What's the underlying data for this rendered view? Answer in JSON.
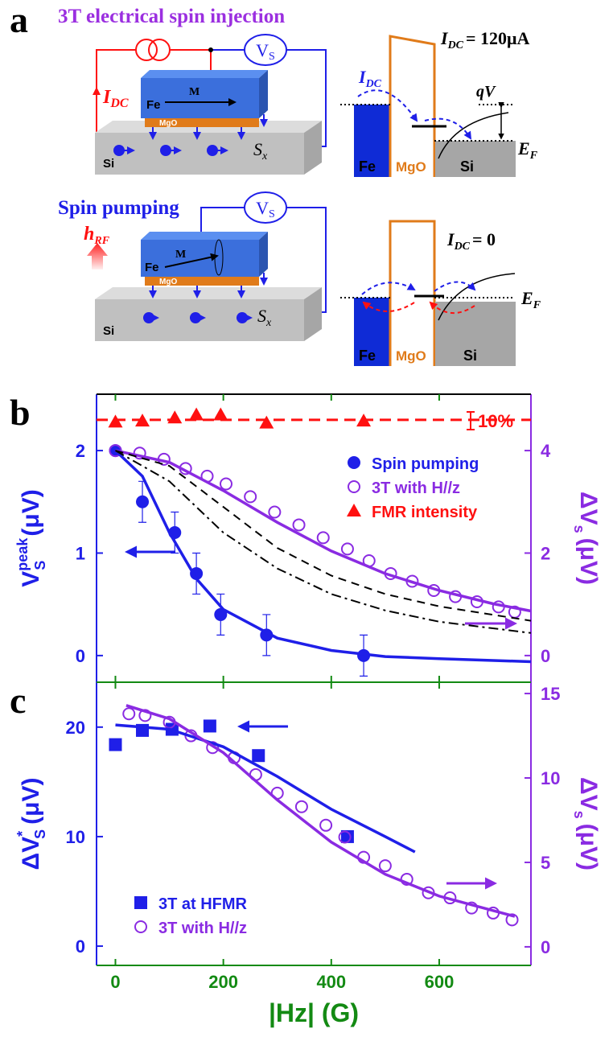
{
  "panel_a": {
    "label": "a",
    "title_top": "3T electrical spin injection",
    "title_bottom": "Spin pumping",
    "top": {
      "current": {
        "symbol": "I",
        "sub": "DC"
      },
      "voltmeter": {
        "symbol": "V",
        "sub": "S"
      },
      "fe": "Fe",
      "m": "M",
      "mgo": "MgO",
      "si": "Si",
      "spin": {
        "symbol": "S",
        "sub": "x"
      }
    },
    "top_band": {
      "current_label": {
        "symbol": "I",
        "sub": "DC",
        "value": "= 120μA"
      },
      "current_arrow": {
        "symbol": "I",
        "sub": "DC"
      },
      "qv": "qV",
      "ef": {
        "symbol": "E",
        "sub": "F"
      },
      "fe": "Fe",
      "mgo": "MgO",
      "si": "Si"
    },
    "bottom": {
      "field": {
        "symbol": "h",
        "sub": "RF"
      },
      "voltmeter": {
        "symbol": "V",
        "sub": "S"
      },
      "fe": "Fe",
      "m": "M",
      "mgo": "MgO",
      "si": "Si",
      "spin": {
        "symbol": "S",
        "sub": "x"
      }
    },
    "bottom_band": {
      "current_label": {
        "symbol": "I",
        "sub": "DC",
        "value": "= 0"
      },
      "ef": {
        "symbol": "E",
        "sub": "F"
      },
      "fe": "Fe",
      "mgo": "MgO",
      "si": "Si"
    }
  },
  "chart_data": [
    {
      "type": "scatter",
      "panel_label": "b",
      "xlim": [
        -35,
        770
      ],
      "ylim": [
        -0.26,
        2.55
      ],
      "yticks": [
        0,
        1,
        2
      ],
      "y2lim": [
        -0.52,
        5.1
      ],
      "y2ticks": [
        0,
        2,
        4
      ],
      "y_label": {
        "symbol": "V",
        "sub": "S",
        "sup": "peak",
        "unit": "(μV)"
      },
      "y2_label": {
        "symbol": "ΔV",
        "sub": "s",
        "unit": "(μV)"
      },
      "legend": "upper right",
      "annotation": "10%",
      "left_color": "#1f1fe8",
      "right_color": "#8a2be2",
      "series": [
        {
          "name": "Spin pumping",
          "color": "#1f1fe8",
          "marker": "circle",
          "x": [
            0,
            50,
            110,
            150,
            195,
            280,
            460
          ],
          "values": [
            2.0,
            1.5,
            1.2,
            0.8,
            0.4,
            0.2,
            0.0
          ],
          "errors": [
            0.0,
            0.2,
            0.2,
            0.2,
            0.2,
            0.2,
            0.2
          ]
        },
        {
          "name": "3T with H//z",
          "color": "#8a2be2",
          "marker": "open-circle",
          "axis": "y2",
          "x": [
            0,
            45,
            90,
            130,
            170,
            205,
            250,
            295,
            340,
            385,
            430,
            470,
            510,
            550,
            590,
            630,
            670,
            710,
            740
          ],
          "values": [
            4.0,
            3.95,
            3.83,
            3.65,
            3.5,
            3.35,
            3.1,
            2.8,
            2.55,
            2.3,
            2.08,
            1.85,
            1.6,
            1.45,
            1.27,
            1.15,
            1.05,
            0.95,
            0.85
          ]
        },
        {
          "name": "FMR intensity",
          "color": "#ff1010",
          "marker": "triangle",
          "x": [
            0,
            50,
            110,
            150,
            195,
            280,
            460
          ],
          "values": [
            2.28,
            2.29,
            2.32,
            2.35,
            2.35,
            2.27,
            2.29
          ]
        },
        {
          "color": "#1f1fe8",
          "marker": "line",
          "x": [
            0,
            50,
            100,
            150,
            200,
            300,
            400,
            500,
            600,
            770
          ],
          "values": [
            2.0,
            1.75,
            1.2,
            0.75,
            0.45,
            0.17,
            0.05,
            -0.01,
            -0.03,
            -0.06
          ]
        },
        {
          "color": "#8a2be2",
          "marker": "line",
          "axis": "y2",
          "x": [
            0,
            100,
            200,
            300,
            400,
            500,
            600,
            700,
            770
          ],
          "values": [
            4.0,
            3.77,
            3.22,
            2.6,
            2.04,
            1.6,
            1.27,
            1.01,
            0.87
          ]
        },
        {
          "color": "#000000",
          "marker": "line",
          "dash": "dashed",
          "x": [
            0,
            100,
            200,
            300,
            400,
            500,
            600,
            770
          ],
          "values": [
            2.0,
            1.85,
            1.45,
            1.05,
            0.78,
            0.6,
            0.48,
            0.34
          ]
        },
        {
          "color": "#000000",
          "marker": "line",
          "dash": "dashdot",
          "x": [
            0,
            100,
            200,
            300,
            400,
            500,
            600,
            770
          ],
          "values": [
            2.0,
            1.7,
            1.2,
            0.85,
            0.6,
            0.44,
            0.33,
            0.22
          ]
        },
        {
          "color": "#ff1010",
          "marker": "line",
          "dash": "reference",
          "x": [
            -35,
            770
          ],
          "values": [
            2.3,
            2.3
          ]
        }
      ]
    },
    {
      "type": "scatter",
      "panel_label": "c",
      "xlim": [
        -35,
        770
      ],
      "xticks": [
        0,
        200,
        400,
        600
      ],
      "x_label": "|Hz| (G)",
      "ylim": [
        -1.76,
        24.1
      ],
      "yticks": [
        0,
        10,
        20
      ],
      "y2lim": [
        -1.1,
        15.67
      ],
      "y2ticks": [
        0,
        5,
        10,
        15
      ],
      "y_label": {
        "symbol": "ΔV",
        "sup": "*",
        "sub": "S",
        "unit": "(μV)"
      },
      "y2_label": {
        "symbol": "ΔV",
        "sub": "s",
        "unit": "(μV)"
      },
      "legend": "lower left",
      "left_color": "#1f1fe8",
      "right_color": "#8a2be2",
      "x_color": "#138a13",
      "series": [
        {
          "name": "3T at HFMR",
          "color": "#1f1fe8",
          "marker": "square",
          "x": [
            0,
            50,
            105,
            175,
            265,
            430
          ],
          "values": [
            18.4,
            19.7,
            19.8,
            20.1,
            17.4,
            10.0
          ]
        },
        {
          "name": "3T with H//z",
          "color": "#8a2be2",
          "marker": "open-circle",
          "axis": "y2",
          "x": [
            25,
            55,
            100,
            140,
            180,
            220,
            260,
            300,
            345,
            390,
            425,
            460,
            500,
            540,
            580,
            620,
            660,
            700,
            735
          ],
          "values": [
            13.8,
            13.7,
            13.3,
            12.5,
            11.8,
            11.2,
            10.2,
            9.1,
            8.3,
            7.2,
            6.5,
            5.3,
            4.8,
            4.0,
            3.2,
            2.9,
            2.3,
            2.0,
            1.6
          ]
        },
        {
          "color": "#1f1fe8",
          "marker": "line",
          "x": [
            0,
            100,
            200,
            300,
            400,
            500,
            555
          ],
          "values": [
            20.2,
            19.8,
            18.2,
            15.5,
            12.5,
            10.0,
            8.6
          ]
        },
        {
          "color": "#8a2be2",
          "marker": "line",
          "axis": "y2",
          "x": [
            20,
            50,
            100,
            200,
            300,
            400,
            500,
            600,
            740
          ],
          "values": [
            14.3,
            14.0,
            13.5,
            11.5,
            8.7,
            6.2,
            4.3,
            3.0,
            1.8
          ]
        }
      ]
    }
  ]
}
